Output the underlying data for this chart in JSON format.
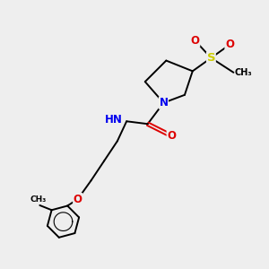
{
  "bg_color": "#eeeeee",
  "bond_color": "#000000",
  "N_color": "#0000ee",
  "O_color": "#dd0000",
  "S_color": "#cccc00",
  "font_size": 8.5,
  "line_width": 1.4,
  "xlim": [
    0,
    10
  ],
  "ylim": [
    0,
    10
  ]
}
